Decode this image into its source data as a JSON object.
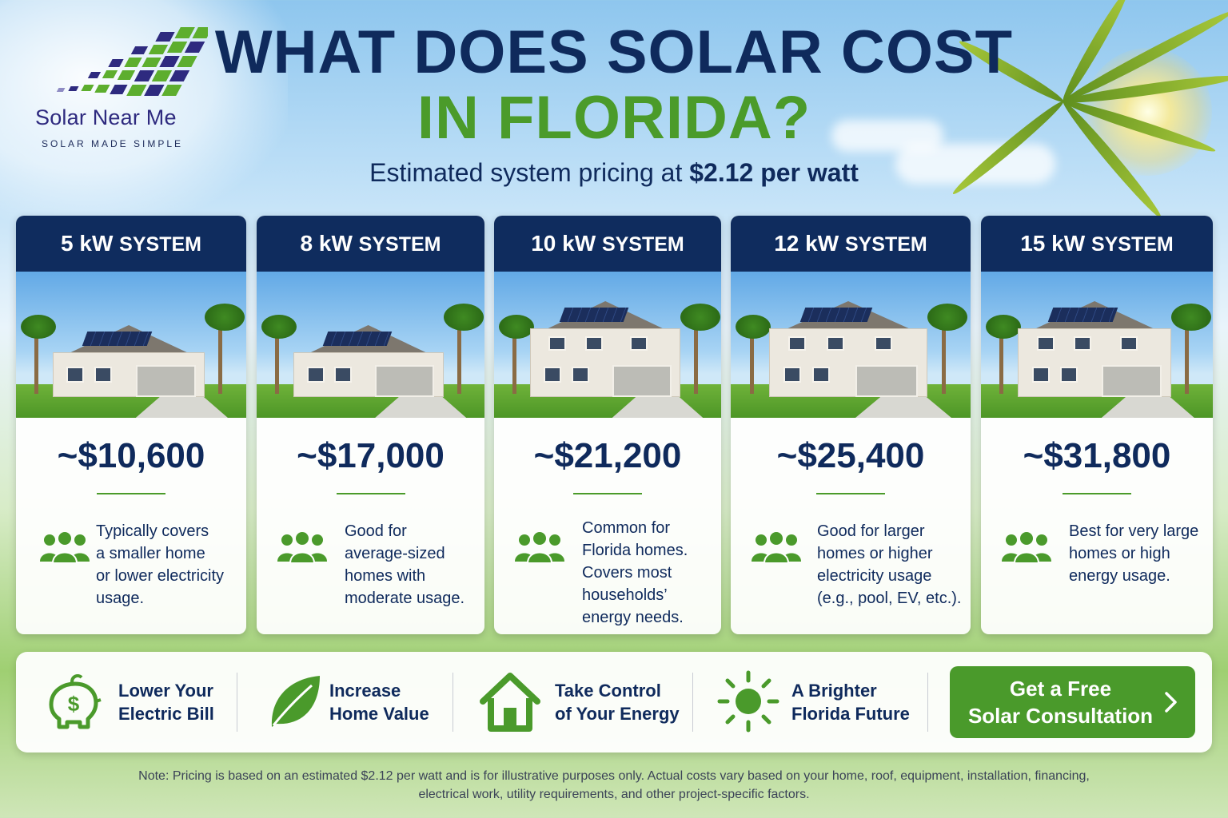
{
  "brand": {
    "name": "Solar Near Me",
    "tagline": "SOLAR MADE SIMPLE",
    "colors": {
      "navy": "#0f2c5e",
      "green": "#4a9a2b",
      "purple": "#2e2a7f"
    },
    "logo_icon": "solar-panel-grid-icon"
  },
  "header": {
    "title_line1": "WHAT DOES SOLAR COST",
    "title_line2": "IN FLORIDA?",
    "subtitle_prefix": "Estimated system pricing at ",
    "subtitle_price": "$2.12 per watt"
  },
  "systems": [
    {
      "size": "5 kW",
      "unit": "SYSTEM",
      "price": "~$10,600",
      "icon": "people-group-icon",
      "description": [
        "Typically covers",
        "a smaller home",
        "or lower electricity",
        "usage."
      ]
    },
    {
      "size": "8 kW",
      "unit": "SYSTEM",
      "price": "~$17,000",
      "icon": "people-group-icon",
      "description": [
        "Good for",
        "average-sized",
        "homes with",
        "moderate usage."
      ]
    },
    {
      "size": "10 kW",
      "unit": "SYSTEM",
      "price": "~$21,200",
      "icon": "people-group-icon",
      "description": [
        "Common for",
        "Florida homes.",
        "Covers most",
        "households’",
        "energy needs."
      ]
    },
    {
      "size": "12 kW",
      "unit": "SYSTEM",
      "price": "~$25,400",
      "icon": "people-group-icon",
      "description": [
        "Good for larger",
        "homes or higher",
        "electricity usage",
        "(e.g., pool, EV, etc.)."
      ]
    },
    {
      "size": "15 kW",
      "unit": "SYSTEM",
      "price": "~$31,800",
      "icon": "people-group-icon",
      "description": [
        "Best for very large",
        "homes or high",
        "energy usage."
      ]
    }
  ],
  "benefits": [
    {
      "icon": "piggy-bank-dollar-icon",
      "line1": "Lower Your",
      "line2": "Electric Bill"
    },
    {
      "icon": "leaf-icon",
      "line1": "Increase",
      "line2": "Home Value"
    },
    {
      "icon": "house-icon",
      "line1": "Take Control",
      "line2": "of Your Energy"
    },
    {
      "icon": "sun-icon",
      "line1": "A Brighter",
      "line2": "Florida Future"
    }
  ],
  "cta": {
    "line1": "Get a Free",
    "line2": "Solar Consultation",
    "icon": "chevron-right-icon"
  },
  "note": {
    "line1": "Note: Pricing is based on an estimated $2.12 per watt and is for illustrative purposes only. Actual costs vary based on your home, roof, equipment, installation, financing,",
    "line2": "electrical work, utility requirements, and other project-specific factors."
  }
}
